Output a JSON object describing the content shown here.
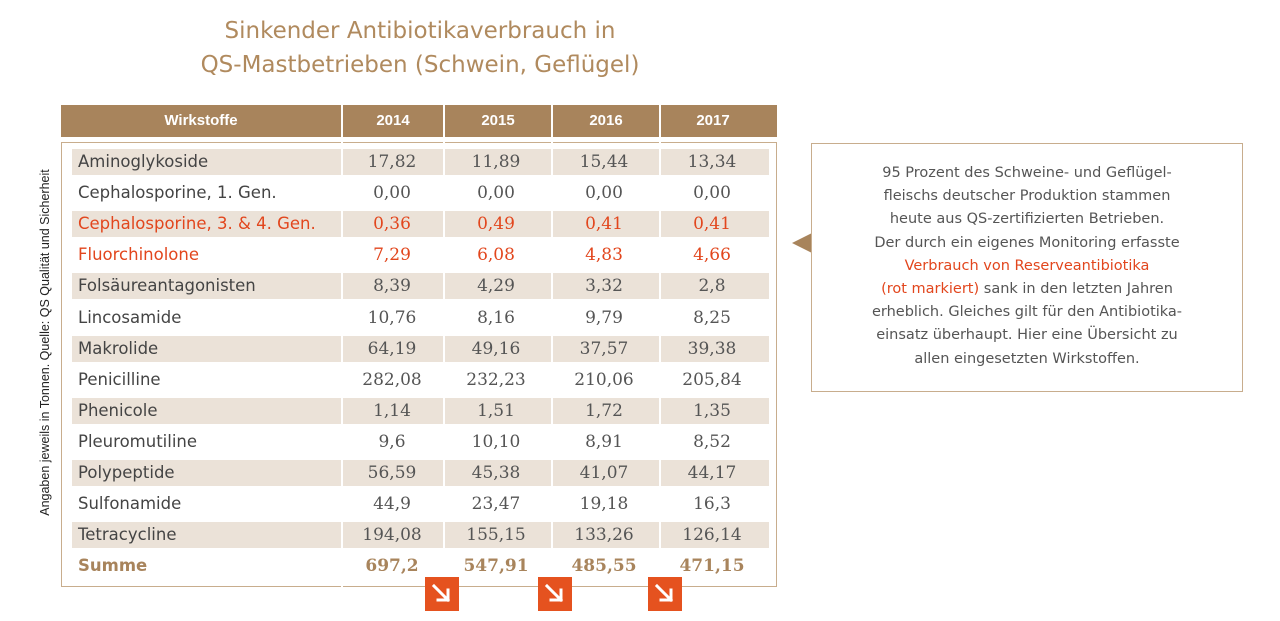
{
  "title": {
    "line1": "Sinkender Antibiotikaverbrauch in",
    "line2": "QS-Mastbetrieben (Schwein, Geflügel)"
  },
  "side_note": "Angaben jeweils in Tonnen. Quelle: QS Qualität und Sicherheit",
  "table": {
    "headers": [
      "Wirkstoffe",
      "2014",
      "2015",
      "2016",
      "2017"
    ],
    "rows": [
      {
        "name": "Aminoglykoside",
        "values": [
          "17,82",
          "11,89",
          "15,44",
          "13,34"
        ],
        "reserve": false
      },
      {
        "name": "Cephalosporine, 1. Gen.",
        "values": [
          "0,00",
          "0,00",
          "0,00",
          "0,00"
        ],
        "reserve": false
      },
      {
        "name": "Cephalosporine, 3. & 4. Gen.",
        "values": [
          "0,36",
          "0,49",
          "0,41",
          "0,41"
        ],
        "reserve": true
      },
      {
        "name": "Fluorchinolone",
        "values": [
          "7,29",
          "6,08",
          "4,83",
          "4,66"
        ],
        "reserve": true
      },
      {
        "name": "Folsäureantagonisten",
        "values": [
          "8,39",
          "4,29",
          "3,32",
          "2,8"
        ],
        "reserve": false
      },
      {
        "name": "Lincosamide",
        "values": [
          "10,76",
          "8,16",
          "9,79",
          "8,25"
        ],
        "reserve": false
      },
      {
        "name": "Makrolide",
        "values": [
          "64,19",
          "49,16",
          "37,57",
          "39,38"
        ],
        "reserve": false
      },
      {
        "name": "Penicilline",
        "values": [
          "282,08",
          "232,23",
          "210,06",
          "205,84"
        ],
        "reserve": false
      },
      {
        "name": "Phenicole",
        "values": [
          "1,14",
          "1,51",
          "1,72",
          "1,35"
        ],
        "reserve": false
      },
      {
        "name": "Pleuromutiline",
        "values": [
          "9,6",
          "10,10",
          "8,91",
          "8,52"
        ],
        "reserve": false
      },
      {
        "name": "Polypeptide",
        "values": [
          "56,59",
          "45,38",
          "41,07",
          "44,17"
        ],
        "reserve": false
      },
      {
        "name": "Sulfonamide",
        "values": [
          "44,9",
          "23,47",
          "19,18",
          "16,3"
        ],
        "reserve": false
      },
      {
        "name": "Tetracycline",
        "values": [
          "194,08",
          "155,15",
          "133,26",
          "126,14"
        ],
        "reserve": false
      }
    ],
    "sum": {
      "name": "Summe",
      "values": [
        "697,2",
        "547,91",
        "485,55",
        "471,15"
      ]
    }
  },
  "info": {
    "part1": "95 Prozent des Schweine- und Geflügel-",
    "part2": "fleischs deutscher Produktion stammen",
    "part3": "heute aus QS-zertifizierten Betrieben.",
    "part4": "Der durch ein eigenes Monitoring erfasste",
    "highlight1": "Verbrauch von Reserveantibiotika",
    "highlight2": "(rot markiert)",
    "part5": " sank in den letzten Jahren",
    "part6": "erheblich. Gleiches gilt für den Antibiotika-",
    "part7": "einsatz überhaupt. Hier eine Übersicht zu",
    "part8": "allen eingesetzten Wirkstoffen."
  },
  "colors": {
    "accent_brown": "#a8845c",
    "reserve_red": "#e2461d",
    "arrow_orange": "#e5521f",
    "row_shade": "#ebe2d8"
  },
  "icons": [
    "down-right-arrow-icon",
    "left-pointer-triangle-icon"
  ]
}
